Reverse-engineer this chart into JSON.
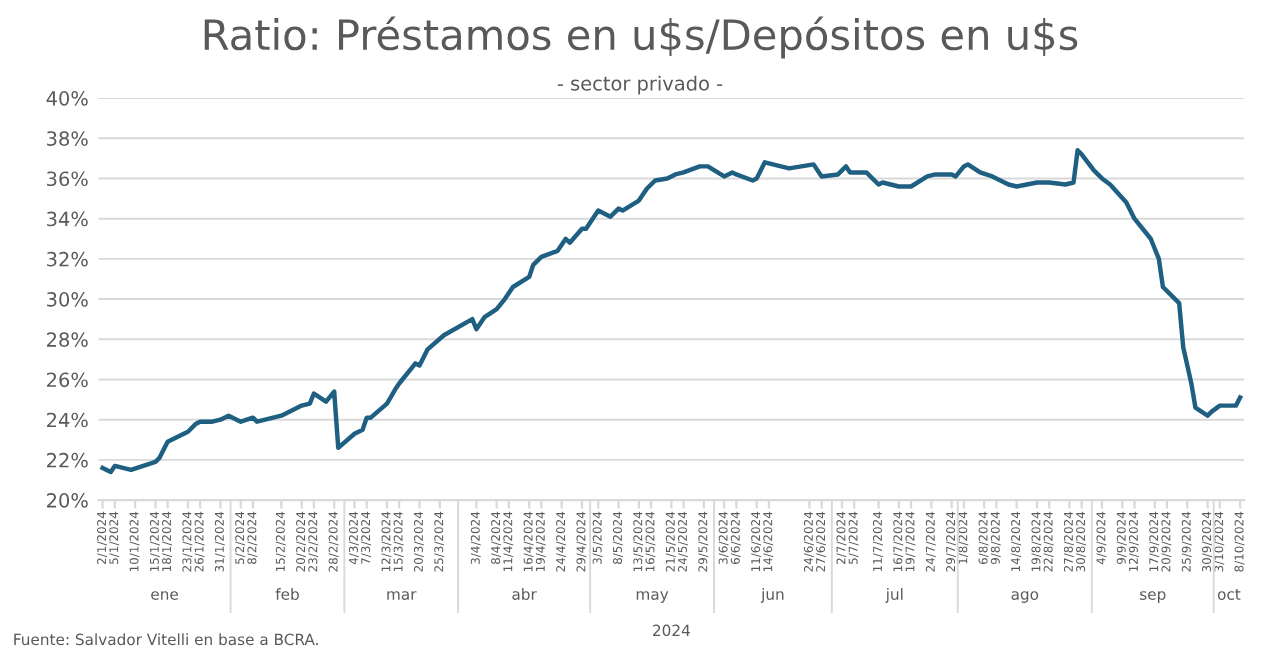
{
  "chart_data": {
    "type": "line",
    "title": "Ratio: Préstamos en u$s/Depósitos en u$s",
    "subtitle": "- sector privado -",
    "x": [
      "2024-01-02",
      "2024-01-04",
      "2024-01-05",
      "2024-01-09",
      "2024-01-12",
      "2024-01-15",
      "2024-01-16",
      "2024-01-18",
      "2024-01-19",
      "2024-01-23",
      "2024-01-25",
      "2024-01-26",
      "2024-01-29",
      "2024-01-31",
      "2024-02-02",
      "2024-02-05",
      "2024-02-08",
      "2024-02-09",
      "2024-02-15",
      "2024-02-20",
      "2024-02-22",
      "2024-02-23",
      "2024-02-26",
      "2024-02-28",
      "2024-02-29",
      "2024-03-04",
      "2024-03-06",
      "2024-03-07",
      "2024-03-08",
      "2024-03-12",
      "2024-03-14",
      "2024-03-15",
      "2024-03-19",
      "2024-03-20",
      "2024-03-22",
      "2024-03-26",
      "2024-04-02",
      "2024-04-03",
      "2024-04-05",
      "2024-04-08",
      "2024-04-10",
      "2024-04-12",
      "2024-04-16",
      "2024-04-17",
      "2024-04-19",
      "2024-04-23",
      "2024-04-25",
      "2024-04-26",
      "2024-04-29",
      "2024-04-30",
      "2024-05-03",
      "2024-05-06",
      "2024-05-08",
      "2024-05-09",
      "2024-05-13",
      "2024-05-15",
      "2024-05-17",
      "2024-05-20",
      "2024-05-22",
      "2024-05-24",
      "2024-05-28",
      "2024-05-30",
      "2024-06-03",
      "2024-06-05",
      "2024-06-06",
      "2024-06-10",
      "2024-06-11",
      "2024-06-13",
      "2024-06-19",
      "2024-06-25",
      "2024-06-27",
      "2024-07-01",
      "2024-07-03",
      "2024-07-04",
      "2024-07-08",
      "2024-07-11",
      "2024-07-12",
      "2024-07-16",
      "2024-07-19",
      "2024-07-23",
      "2024-07-25",
      "2024-07-29",
      "2024-07-30",
      "2024-08-01",
      "2024-08-02",
      "2024-08-05",
      "2024-08-08",
      "2024-08-12",
      "2024-08-14",
      "2024-08-19",
      "2024-08-22",
      "2024-08-26",
      "2024-08-28",
      "2024-08-29",
      "2024-08-30",
      "2024-09-02",
      "2024-09-04",
      "2024-09-06",
      "2024-09-10",
      "2024-09-12",
      "2024-09-16",
      "2024-09-18",
      "2024-09-19",
      "2024-09-23",
      "2024-09-24",
      "2024-09-26",
      "2024-09-27",
      "2024-09-30",
      "2024-10-01",
      "2024-10-03",
      "2024-10-07",
      "2024-10-08"
    ],
    "series": [
      {
        "color": "#1f5f82",
        "values": [
          21.6,
          21.4,
          21.7,
          21.5,
          21.7,
          21.9,
          22.1,
          22.9,
          23.0,
          23.4,
          23.8,
          23.9,
          23.9,
          24.0,
          24.2,
          23.9,
          24.1,
          23.9,
          24.2,
          24.7,
          24.8,
          25.3,
          24.9,
          25.4,
          22.6,
          23.3,
          23.5,
          24.1,
          24.1,
          24.8,
          25.5,
          25.8,
          26.8,
          26.7,
          27.5,
          28.2,
          29.0,
          28.5,
          29.1,
          29.5,
          30.0,
          30.6,
          31.1,
          31.7,
          32.1,
          32.4,
          33.0,
          32.8,
          33.5,
          33.5,
          34.4,
          34.1,
          34.5,
          34.4,
          34.9,
          35.5,
          35.9,
          36.0,
          36.2,
          36.3,
          36.6,
          36.6,
          36.1,
          36.3,
          36.2,
          35.9,
          36.0,
          36.8,
          36.5,
          36.7,
          36.1,
          36.2,
          36.6,
          36.3,
          36.3,
          35.7,
          35.8,
          35.6,
          35.6,
          36.1,
          36.2,
          36.2,
          36.1,
          36.6,
          36.7,
          36.3,
          36.1,
          35.7,
          35.6,
          35.8,
          35.8,
          35.7,
          35.8,
          37.4,
          37.2,
          36.4,
          36.0,
          35.7,
          34.8,
          34.0,
          33.0,
          32.0,
          30.6,
          29.8,
          27.6,
          25.8,
          24.6,
          24.2,
          24.4,
          24.7,
          24.7,
          25.1
        ]
      }
    ],
    "xlim": [
      "2024-01-01",
      "2024-10-09"
    ],
    "xticks": [
      {
        "value": "2024-01-02",
        "label": "2/1/2024"
      },
      {
        "value": "2024-01-05",
        "label": "5/1/2024"
      },
      {
        "value": "2024-01-10",
        "label": "10/1/2024"
      },
      {
        "value": "2024-01-15",
        "label": "15/1/2024"
      },
      {
        "value": "2024-01-18",
        "label": "18/1/2024"
      },
      {
        "value": "2024-01-23",
        "label": "23/1/2024"
      },
      {
        "value": "2024-01-26",
        "label": "26/1/2024"
      },
      {
        "value": "2024-01-31",
        "label": "31/1/2024"
      },
      {
        "value": "2024-02-05",
        "label": "5/2/2024"
      },
      {
        "value": "2024-02-08",
        "label": "8/2/2024"
      },
      {
        "value": "2024-02-15",
        "label": "15/2/2024"
      },
      {
        "value": "2024-02-20",
        "label": "20/2/2024"
      },
      {
        "value": "2024-02-23",
        "label": "23/2/2024"
      },
      {
        "value": "2024-02-28",
        "label": "28/2/2024"
      },
      {
        "value": "2024-03-04",
        "label": "4/3/2024"
      },
      {
        "value": "2024-03-07",
        "label": "7/3/2024"
      },
      {
        "value": "2024-03-12",
        "label": "12/3/2024"
      },
      {
        "value": "2024-03-15",
        "label": "15/3/2024"
      },
      {
        "value": "2024-03-20",
        "label": "20/3/2024"
      },
      {
        "value": "2024-03-25",
        "label": "25/3/2024"
      },
      {
        "value": "2024-04-03",
        "label": "3/4/2024"
      },
      {
        "value": "2024-04-08",
        "label": "8/4/2024"
      },
      {
        "value": "2024-04-11",
        "label": "11/4/2024"
      },
      {
        "value": "2024-04-16",
        "label": "16/4/2024"
      },
      {
        "value": "2024-04-19",
        "label": "19/4/2024"
      },
      {
        "value": "2024-04-24",
        "label": "24/4/2024"
      },
      {
        "value": "2024-04-29",
        "label": "29/4/2024"
      },
      {
        "value": "2024-05-03",
        "label": "3/5/2024"
      },
      {
        "value": "2024-05-08",
        "label": "8/5/2024"
      },
      {
        "value": "2024-05-13",
        "label": "13/5/2024"
      },
      {
        "value": "2024-05-16",
        "label": "16/5/2024"
      },
      {
        "value": "2024-05-21",
        "label": "21/5/2024"
      },
      {
        "value": "2024-05-24",
        "label": "24/5/2024"
      },
      {
        "value": "2024-05-29",
        "label": "29/5/2024"
      },
      {
        "value": "2024-06-03",
        "label": "3/6/2024"
      },
      {
        "value": "2024-06-06",
        "label": "6/6/2024"
      },
      {
        "value": "2024-06-11",
        "label": "11/6/2024"
      },
      {
        "value": "2024-06-14",
        "label": "14/6/2024"
      },
      {
        "value": "2024-06-24",
        "label": "24/6/2024"
      },
      {
        "value": "2024-06-27",
        "label": "27/6/2024"
      },
      {
        "value": "2024-07-02",
        "label": "2/7/2024"
      },
      {
        "value": "2024-07-05",
        "label": "5/7/2024"
      },
      {
        "value": "2024-07-11",
        "label": "11/7/2024"
      },
      {
        "value": "2024-07-16",
        "label": "16/7/2024"
      },
      {
        "value": "2024-07-19",
        "label": "19/7/2024"
      },
      {
        "value": "2024-07-24",
        "label": "24/7/2024"
      },
      {
        "value": "2024-07-29",
        "label": "29/7/2024"
      },
      {
        "value": "2024-08-01",
        "label": "1/8/2024"
      },
      {
        "value": "2024-08-06",
        "label": "6/8/2024"
      },
      {
        "value": "2024-08-09",
        "label": "9/8/2024"
      },
      {
        "value": "2024-08-14",
        "label": "14/8/2024"
      },
      {
        "value": "2024-08-19",
        "label": "19/8/2024"
      },
      {
        "value": "2024-08-22",
        "label": "22/8/2024"
      },
      {
        "value": "2024-08-27",
        "label": "27/8/2024"
      },
      {
        "value": "2024-08-30",
        "label": "30/8/2024"
      },
      {
        "value": "2024-09-04",
        "label": "4/9/2024"
      },
      {
        "value": "2024-09-09",
        "label": "9/9/2024"
      },
      {
        "value": "2024-09-12",
        "label": "12/9/2024"
      },
      {
        "value": "2024-09-17",
        "label": "17/9/2024"
      },
      {
        "value": "2024-09-20",
        "label": "20/9/2024"
      },
      {
        "value": "2024-09-25",
        "label": "25/9/2024"
      },
      {
        "value": "2024-09-30",
        "label": "30/9/2024"
      },
      {
        "value": "2024-10-03",
        "label": "3/10/2024"
      },
      {
        "value": "2024-10-08",
        "label": "8/10/2024"
      }
    ],
    "ylim": [
      20,
      40
    ],
    "yticks": [
      {
        "value": 20,
        "label": "20%"
      },
      {
        "value": 22,
        "label": "22%"
      },
      {
        "value": 24,
        "label": "24%"
      },
      {
        "value": 26,
        "label": "26%"
      },
      {
        "value": 28,
        "label": "28%"
      },
      {
        "value": 30,
        "label": "30%"
      },
      {
        "value": 32,
        "label": "32%"
      },
      {
        "value": 34,
        "label": "34%"
      },
      {
        "value": 36,
        "label": "36%"
      },
      {
        "value": 38,
        "label": "38%"
      },
      {
        "value": 40,
        "label": "40%"
      }
    ],
    "grid": "y",
    "annotations": [
      "ene",
      "feb",
      "mar",
      "abr",
      "may",
      "jun",
      "jul",
      "ago",
      "sep",
      "oct",
      "2024",
      "Fuente: Salvador Vitelli en base a BCRA."
    ]
  }
}
